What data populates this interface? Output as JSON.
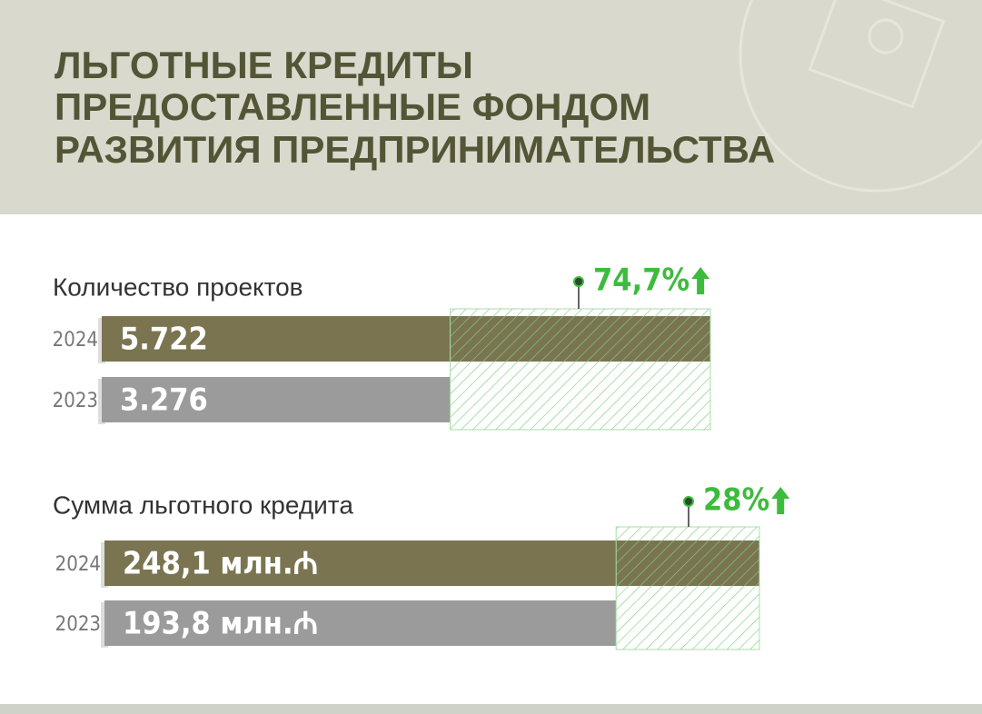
{
  "header": {
    "title_lines": [
      "ЛЬГОТНЫЕ КРЕДИТЫ",
      "ПРЕДОСТАВЛЕННЫЕ ФОНДОМ",
      "РАЗВИТИЯ ПРЕДПРИНИМАТЕЛЬСТВА"
    ]
  },
  "chart_data": [
    {
      "type": "bar",
      "orientation": "horizontal",
      "title": "Количество проектов",
      "categories": [
        "2024",
        "2023"
      ],
      "values": [
        5722,
        3276
      ],
      "value_labels": [
        "5.722",
        "3.276"
      ],
      "colors": [
        "#7a7550",
        "#9b9b9b"
      ],
      "change": {
        "value": 74.7,
        "label": "74,7%"
      },
      "change_color": "#3dbb3d"
    },
    {
      "type": "bar",
      "orientation": "horizontal",
      "title": "Сумма льготного кредита",
      "categories": [
        "2024",
        "2023"
      ],
      "values": [
        248.1,
        193.8
      ],
      "value_labels": [
        "248,1 млн.₼",
        "193,8 млн.₼"
      ],
      "colors": [
        "#7a7550",
        "#9b9b9b"
      ],
      "change": {
        "value": 28,
        "label": "28%"
      },
      "change_color": "#3dbb3d"
    }
  ]
}
